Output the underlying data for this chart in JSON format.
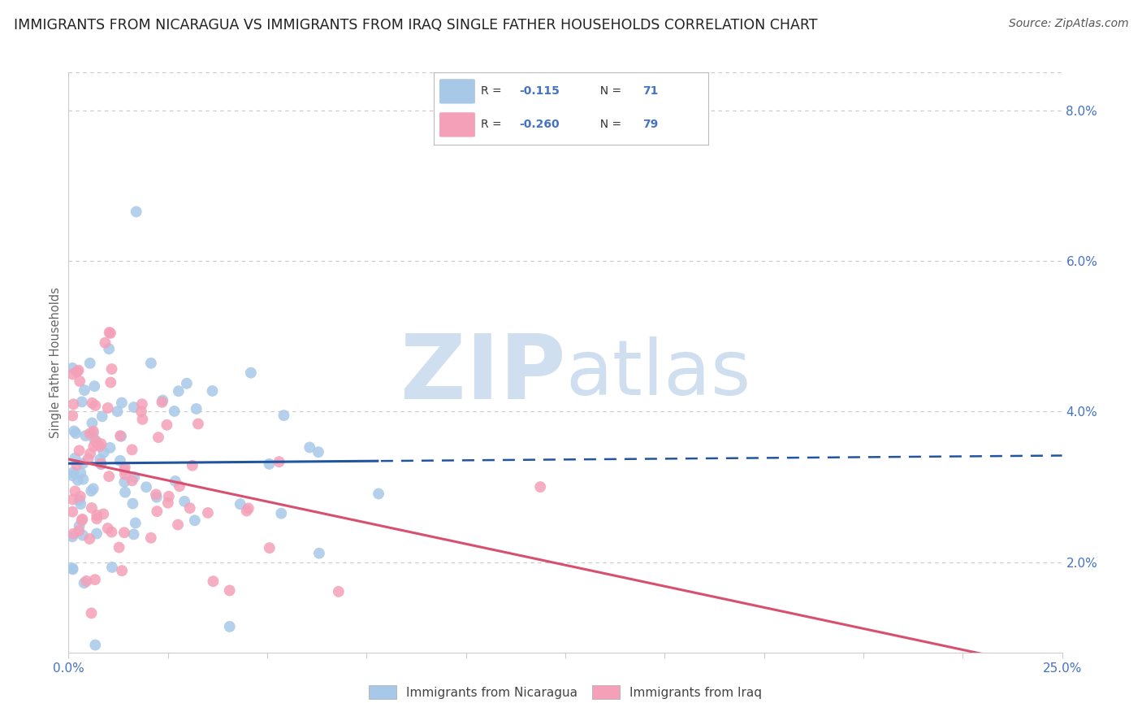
{
  "title": "IMMIGRANTS FROM NICARAGUA VS IMMIGRANTS FROM IRAQ SINGLE FATHER HOUSEHOLDS CORRELATION CHART",
  "source": "Source: ZipAtlas.com",
  "x_min": 0.0,
  "x_max": 0.25,
  "y_min": 0.008,
  "y_max": 0.085,
  "nicaragua_R": -0.115,
  "nicaragua_N": 71,
  "iraq_R": -0.26,
  "iraq_N": 79,
  "nicaragua_color": "#a8c8e8",
  "iraq_color": "#f4a0b8",
  "nicaragua_line_color": "#2255a0",
  "iraq_line_color": "#d85070",
  "watermark_zip": "ZIP",
  "watermark_atlas": "atlas",
  "watermark_color": "#d0dff0",
  "background_color": "#ffffff",
  "grid_color": "#c8c8c8",
  "title_fontsize": 12.5,
  "source_fontsize": 10,
  "tick_label_color": "#4472c4",
  "ylabel_color": "#666666",
  "legend_text_color": "#333333",
  "legend_value_color": "#4472c4"
}
